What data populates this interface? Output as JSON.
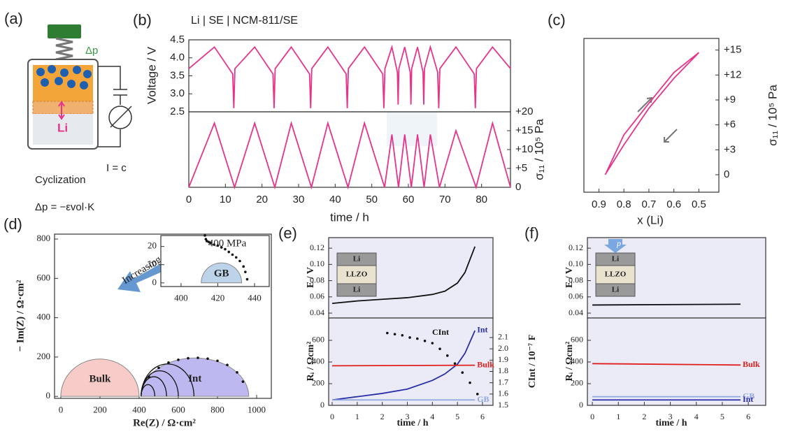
{
  "panel_a": {
    "label": "(a)",
    "delta_p": "Δp",
    "li": "Li",
    "current": "I = c",
    "caption": "Cyclization",
    "formula": "Δp = −εvol·K"
  },
  "chart_data": [
    {
      "type": "line",
      "panel": "(b)",
      "title": "Li | SE | NCM-811/SE",
      "ylabel": "Voltage / V",
      "xlim": [
        0,
        87.9
      ],
      "ylim": [
        2.5,
        4.5
      ],
      "yticks": [
        2.5,
        {
          "value": 3,
          "label": "3.0"
        },
        3.5,
        {
          "value": 4,
          "label": "4.0"
        },
        4.5
      ],
      "series": [
        {
          "color": "#e8338a",
          "x": [
            0,
            7,
            12,
            12.3,
            12.6,
            18,
            23,
            23.3,
            23.6,
            28,
            33,
            33.3,
            33.6,
            38,
            43,
            43.3,
            43.6,
            48,
            53,
            53.3,
            53.6,
            55.5,
            57,
            57.2,
            57.4,
            59,
            60.5,
            60.7,
            60.9,
            62.5,
            64,
            64.2,
            64.4,
            66,
            68,
            68.3,
            68.6,
            73,
            78,
            78.3,
            78.6,
            83,
            87.9
          ],
          "values": [
            3.7,
            4.3,
            3.55,
            2.6,
            3.7,
            4.3,
            3.55,
            2.6,
            3.7,
            4.3,
            3.55,
            2.6,
            3.7,
            4.3,
            3.55,
            2.6,
            3.7,
            4.3,
            3.55,
            2.6,
            3.7,
            4.3,
            3.6,
            2.7,
            3.7,
            4.3,
            3.6,
            2.7,
            3.7,
            4.3,
            3.6,
            2.7,
            3.7,
            4.3,
            3.6,
            2.6,
            3.7,
            4.3,
            3.55,
            2.6,
            3.7,
            4.3,
            3.7
          ]
        }
      ]
    },
    {
      "type": "line",
      "ylabel": "σ₁₁ / 10⁵ Pa",
      "xlabel": "time / h",
      "xlim": [
        0,
        87.9
      ],
      "ylim": [
        0,
        20
      ],
      "xticks": [
        0,
        10,
        20,
        30,
        40,
        50,
        60,
        70,
        80
      ],
      "yticks": [
        0,
        {
          "value": 5,
          "label": "+5"
        },
        {
          "value": 10,
          "label": "+10"
        },
        {
          "value": 15,
          "label": "+15"
        },
        {
          "value": 20,
          "label": "+20"
        }
      ],
      "series": [
        {
          "color": "#e8338a",
          "x": [
            0,
            7,
            12.5,
            18,
            23.5,
            28,
            33.5,
            38,
            43.5,
            48,
            53.5,
            55.5,
            57.3,
            59,
            60.8,
            62.5,
            64.3,
            66,
            68.5,
            73,
            78.5,
            83,
            87.9
          ],
          "values": [
            0,
            17,
            0,
            17,
            0,
            17,
            0,
            17,
            0,
            17,
            0,
            14,
            0,
            14,
            0,
            14,
            0,
            14,
            0,
            15,
            0,
            17,
            0
          ]
        }
      ]
    },
    {
      "type": "line",
      "panel": "(c)",
      "ylabel": "σ₁₁ / 10⁵ Pa",
      "xlabel": "x (Li)",
      "xlim": [
        0.96,
        0.42
      ],
      "ylim": [
        -2.1,
        16.4
      ],
      "xticks": [
        0.9,
        0.8,
        0.7,
        0.6,
        0.5
      ],
      "yticks": [
        0,
        {
          "value": 3,
          "label": "+3"
        },
        {
          "value": 6,
          "label": "+6"
        },
        {
          "value": 9,
          "label": "+9"
        },
        {
          "value": 12,
          "label": "+12"
        },
        {
          "value": 15,
          "label": "+15"
        }
      ],
      "series": [
        {
          "color": "#e8338a",
          "x": [
            0.875,
            0.8,
            0.7,
            0.6,
            0.5,
            0.6,
            0.7,
            0.8,
            0.87
          ],
          "values": [
            0,
            3.6,
            8,
            11.6,
            14.7,
            12.3,
            8.6,
            4.8,
            0.3
          ]
        }
      ]
    },
    {
      "type": "line",
      "panel": "(d)",
      "ylabel": "− Im(Z) / Ω·cm²",
      "xlabel": "Re(Z) / Ω·cm²",
      "xlim": [
        -32,
        1075
      ],
      "ylim": [
        -10,
        825
      ],
      "xticks": [
        0,
        200,
        400,
        600,
        800,
        1000
      ],
      "yticks": [
        0,
        200,
        400,
        600,
        800
      ],
      "annotations": [
        "Increasing force"
      ],
      "regions": [
        {
          "label": "Bulk",
          "color": "#f7cbc8",
          "range": [
            0,
            400
          ],
          "peak": 190
        },
        {
          "label": "Int",
          "color": "#bdb8f0",
          "range": [
            410,
            960
          ],
          "peak": 195
        }
      ],
      "arcs": [
        {
          "range": [
            410,
            480
          ],
          "peak": 60
        },
        {
          "range": [
            410,
            540
          ],
          "peak": 100
        },
        {
          "range": [
            410,
            600
          ],
          "peak": 130
        },
        {
          "range": [
            410,
            680
          ],
          "peak": 165
        }
      ],
      "series": [
        {
          "color": "#111111",
          "line": false,
          "marker": true,
          "x": [
            450,
            500,
            550,
            600,
            650,
            700,
            750,
            800,
            850,
            900,
            930
          ],
          "values": [
            100,
            145,
            172,
            186,
            194,
            196,
            192,
            181,
            160,
            122,
            75
          ]
        }
      ]
    },
    {
      "type": "line",
      "xlim": [
        389,
        448
      ],
      "ylim": [
        -2,
        26
      ],
      "xticks": [
        400,
        420,
        440
      ],
      "yticks": [
        0,
        10,
        20
      ],
      "annotations": [
        "400 MPa"
      ],
      "regions": [
        {
          "label": "GB",
          "color": "#bcd3ea",
          "range": [
            411,
            433
          ],
          "peak": 11
        }
      ],
      "series": [
        {
          "color": "#111111",
          "line": false,
          "marker": true,
          "x": [
            413,
            413.5,
            414,
            415,
            416,
            418,
            420,
            422,
            424,
            426,
            428,
            430,
            432,
            434,
            435,
            436
          ],
          "values": [
            26,
            24,
            23,
            22.5,
            22,
            21,
            20.5,
            19.5,
            18.5,
            17,
            15.5,
            14,
            12,
            9,
            6,
            2
          ]
        }
      ]
    },
    {
      "type": "line",
      "panel": "(e)",
      "ylabel": "E / V",
      "inset_labels": [
        "Li",
        "LLZO",
        "Li"
      ],
      "xlim": [
        -0.14,
        6.42
      ],
      "ylim": [
        0.034,
        0.133
      ],
      "yticks": [
        0.04,
        0.06,
        0.08,
        {
          "value": 0.1,
          "label": "0.10"
        },
        0.12
      ],
      "series": [
        {
          "color": "#111111",
          "x": [
            0,
            1,
            2,
            3,
            4,
            4.5,
            5,
            5.3,
            5.7
          ],
          "values": [
            0.052,
            0.055,
            0.057,
            0.059,
            0.063,
            0.067,
            0.077,
            0.09,
            0.122
          ]
        }
      ]
    },
    {
      "type": "line",
      "ylabel": "Rᵢ / Ωcm²",
      "y2label": "CInt / 10⁻⁷ F",
      "xlabel": "time / h",
      "xlim": [
        -0.14,
        6.42
      ],
      "ylim": [
        0,
        806
      ],
      "y2lim": [
        1.5,
        2.273
      ],
      "xticks": [
        0,
        1,
        2,
        3,
        4,
        5,
        6
      ],
      "yticks": [
        0,
        200,
        400,
        600
      ],
      "y2ticks": [
        1.5,
        1.6,
        1.7,
        1.8,
        1.9,
        {
          "value": 2,
          "label": "2.0"
        },
        2.1
      ],
      "series": [
        {
          "name": "Int",
          "color": "#2a2fa8",
          "x": [
            0,
            1,
            2,
            3,
            4,
            4.5,
            5,
            5.3,
            5.7
          ],
          "values": [
            50,
            80,
            110,
            150,
            230,
            290,
            380,
            480,
            690
          ]
        },
        {
          "name": "Bulk",
          "color": "#e0201c",
          "x": [
            0,
            5.7
          ],
          "values": [
            365,
            370
          ]
        },
        {
          "name": "GB",
          "color": "#8fa6e0",
          "x": [
            0,
            5.7
          ],
          "values": [
            50,
            50
          ]
        },
        {
          "name": "CInt",
          "color": "#111111",
          "axis": "y2",
          "line": false,
          "marker": true,
          "x": [
            2.2,
            2.5,
            2.8,
            3.1,
            3.4,
            3.7,
            4.0,
            4.3,
            4.6,
            4.9,
            5.2,
            5.5,
            5.8
          ],
          "values": [
            2.14,
            2.13,
            2.12,
            2.1,
            2.09,
            2.07,
            2.05,
            2,
            1.94,
            1.87,
            1.79,
            1.7,
            1.6
          ]
        }
      ]
    },
    {
      "type": "line",
      "panel": "(f)",
      "ylabel": "E / V",
      "inset_labels": [
        "Li",
        "LLZO",
        "Li"
      ],
      "arrow_label": "p",
      "xlim": [
        -0.19,
        6.67
      ],
      "ylim": [
        0.034,
        0.133
      ],
      "yticks": [
        0.04,
        0.06,
        0.08,
        {
          "value": 0.1,
          "label": "0.10"
        },
        0.12
      ],
      "series": [
        {
          "color": "#111111",
          "x": [
            0,
            5.7
          ],
          "values": [
            0.05,
            0.051
          ]
        }
      ]
    },
    {
      "type": "line",
      "ylabel": "Rᵢ / Ωcm²",
      "xlabel": "time / h",
      "xlim": [
        -0.19,
        6.67
      ],
      "ylim": [
        0,
        806
      ],
      "xticks": [
        0,
        1,
        2,
        3,
        4,
        5,
        6
      ],
      "yticks": [
        0,
        200,
        400,
        600
      ],
      "series": [
        {
          "name": "Bulk",
          "color": "#e0201c",
          "x": [
            0,
            5.7
          ],
          "values": [
            385,
            372
          ]
        },
        {
          "name": "GB",
          "color": "#8fa6e0",
          "x": [
            0,
            5.7
          ],
          "values": [
            80,
            80
          ]
        },
        {
          "name": "Int",
          "color": "#2a2fa8",
          "x": [
            0,
            5.7
          ],
          "values": [
            50,
            50
          ]
        }
      ]
    }
  ]
}
